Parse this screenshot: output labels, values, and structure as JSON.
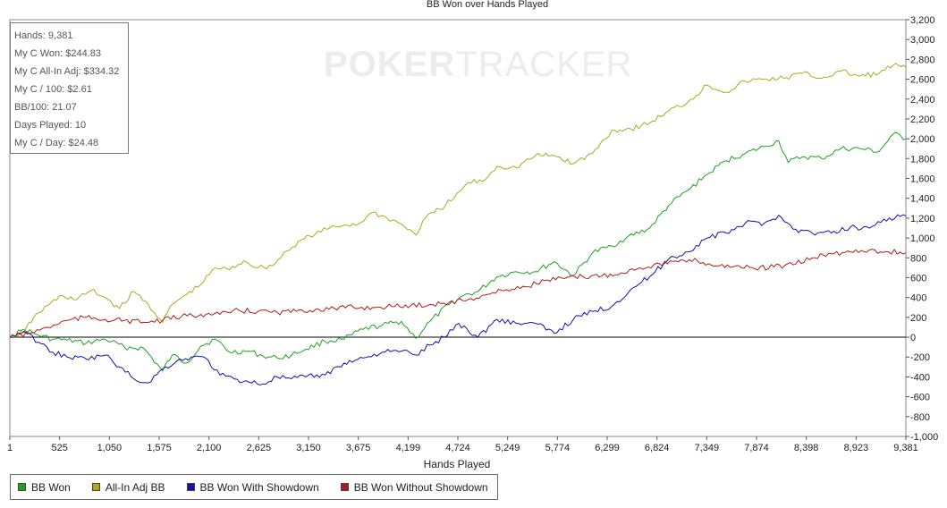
{
  "stats": [
    "Hands: 9,381",
    "My C Won: $244.83",
    "My C All-In Adj: $334.32",
    "My C / 100: $2.61",
    "BB/100: 21.07",
    "Days Played: 10",
    "My C / Day: $24.48"
  ],
  "watermark": {
    "bold": "POKER",
    "light": "TRACKER"
  },
  "colors": {
    "bb_won": "#1fa01f",
    "all_in": "#b0a81f",
    "showdown": "#1212b0",
    "no_showdown": "#b01c1c"
  },
  "chart_data": {
    "type": "line",
    "title": "BB Won over Hands Played",
    "xlabel": "Hands Played",
    "ylabel": "",
    "xlim": [
      1,
      9381
    ],
    "ylim": [
      -1000,
      3200
    ],
    "x_ticks": [
      "1",
      "525",
      "1,050",
      "1,575",
      "2,100",
      "2,625",
      "3,150",
      "3,675",
      "4,199",
      "4,724",
      "5,249",
      "5,774",
      "6,299",
      "6,824",
      "7,349",
      "7,874",
      "8,398",
      "8,923",
      "9,381"
    ],
    "y_ticks": [
      "3,200",
      "3,000",
      "2,800",
      "2,600",
      "2,400",
      "2,200",
      "2,000",
      "1,800",
      "1,600",
      "1,400",
      "1,200",
      "1,000",
      "800",
      "600",
      "400",
      "200",
      "0",
      "-200",
      "-400",
      "-600",
      "-800",
      "-1,000"
    ],
    "grid": false,
    "legend_position": "bottom",
    "series": [
      {
        "name": "BB Won",
        "color": "#1fa01f",
        "x": [
          1,
          150,
          300,
          450,
          600,
          800,
          1000,
          1200,
          1400,
          1600,
          1700,
          1850,
          2000,
          2150,
          2300,
          2500,
          2650,
          2800,
          2950,
          3100,
          3300,
          3500,
          3700,
          3900,
          4100,
          4250,
          4400,
          4600,
          4750,
          4900,
          5100,
          5300,
          5500,
          5700,
          5900,
          6100,
          6300,
          6450,
          6700,
          6900,
          7100,
          7300,
          7500,
          7700,
          7900,
          8050,
          8150,
          8300,
          8500,
          8700,
          8900,
          9100,
          9250,
          9381
        ],
        "y": [
          0,
          80,
          20,
          -20,
          -30,
          -60,
          -20,
          -100,
          -110,
          -340,
          -180,
          -260,
          -90,
          -20,
          -150,
          -140,
          -190,
          -210,
          -180,
          -120,
          -40,
          -20,
          80,
          120,
          160,
          -10,
          160,
          330,
          420,
          460,
          610,
          660,
          660,
          760,
          620,
          850,
          920,
          1000,
          1100,
          1330,
          1480,
          1640,
          1780,
          1850,
          1920,
          1980,
          1760,
          1820,
          1800,
          1900,
          1900,
          1870,
          2050,
          2000
        ]
      },
      {
        "name": "All-In Adj BB",
        "color": "#b0a81f",
        "x": [
          1,
          150,
          250,
          400,
          550,
          700,
          850,
          1000,
          1150,
          1300,
          1450,
          1600,
          1700,
          1850,
          2000,
          2150,
          2300,
          2450,
          2600,
          2750,
          2900,
          3050,
          3200,
          3350,
          3500,
          3650,
          3800,
          3950,
          4100,
          4250,
          4350,
          4500,
          4650,
          4800,
          4950,
          5100,
          5300,
          5500,
          5700,
          5900,
          6100,
          6300,
          6500,
          6700,
          6900,
          7100,
          7300,
          7500,
          7700,
          7900,
          8100,
          8300,
          8500,
          8700,
          8900,
          9100,
          9250,
          9381
        ],
        "y": [
          0,
          50,
          200,
          320,
          420,
          380,
          470,
          400,
          290,
          460,
          330,
          150,
          330,
          430,
          530,
          700,
          680,
          770,
          700,
          720,
          870,
          980,
          1040,
          1100,
          1130,
          1140,
          1260,
          1200,
          1140,
          1030,
          1200,
          1290,
          1400,
          1560,
          1570,
          1720,
          1710,
          1830,
          1830,
          1750,
          1850,
          2080,
          2100,
          2160,
          2280,
          2370,
          2540,
          2470,
          2580,
          2600,
          2610,
          2660,
          2610,
          2680,
          2630,
          2660,
          2740,
          2720
        ]
      },
      {
        "name": "BB Won With Showdown",
        "color": "#1212b0",
        "x": [
          1,
          150,
          300,
          450,
          600,
          800,
          1000,
          1150,
          1300,
          1450,
          1600,
          1750,
          1900,
          2050,
          2200,
          2350,
          2500,
          2650,
          2800,
          2950,
          3100,
          3300,
          3500,
          3700,
          3900,
          4100,
          4250,
          4400,
          4550,
          4700,
          4900,
          5100,
          5300,
          5500,
          5700,
          5900,
          6100,
          6300,
          6500,
          6700,
          6900,
          7100,
          7300,
          7500,
          7700,
          7900,
          8050,
          8200,
          8400,
          8600,
          8800,
          9000,
          9150,
          9381
        ],
        "y": [
          0,
          60,
          -50,
          -150,
          -200,
          -220,
          -180,
          -300,
          -420,
          -460,
          -320,
          -240,
          -200,
          -210,
          -380,
          -420,
          -450,
          -470,
          -400,
          -420,
          -400,
          -380,
          -260,
          -210,
          -150,
          -140,
          -180,
          -80,
          0,
          140,
          0,
          180,
          140,
          140,
          40,
          180,
          260,
          310,
          480,
          610,
          790,
          860,
          1000,
          1050,
          1150,
          1150,
          1230,
          1090,
          1050,
          1050,
          1110,
          1100,
          1190,
          1220
        ]
      },
      {
        "name": "BB Won Without Showdown",
        "color": "#b01c1c",
        "x": [
          1,
          200,
          400,
          600,
          800,
          1000,
          1200,
          1400,
          1600,
          1800,
          2000,
          2200,
          2400,
          2600,
          2800,
          3000,
          3200,
          3400,
          3600,
          3800,
          4000,
          4200,
          4400,
          4600,
          4800,
          5000,
          5200,
          5400,
          5600,
          5800,
          6000,
          6200,
          6400,
          6600,
          6800,
          7000,
          7200,
          7400,
          7600,
          7800,
          8000,
          8200,
          8400,
          8600,
          8800,
          9000,
          9200,
          9381
        ],
        "y": [
          0,
          40,
          100,
          170,
          200,
          180,
          170,
          150,
          170,
          210,
          230,
          230,
          270,
          260,
          250,
          260,
          280,
          290,
          300,
          300,
          310,
          320,
          330,
          350,
          380,
          430,
          480,
          510,
          570,
          590,
          610,
          620,
          650,
          700,
          740,
          760,
          770,
          720,
          720,
          690,
          710,
          730,
          800,
          840,
          860,
          880,
          860,
          850
        ]
      }
    ]
  }
}
